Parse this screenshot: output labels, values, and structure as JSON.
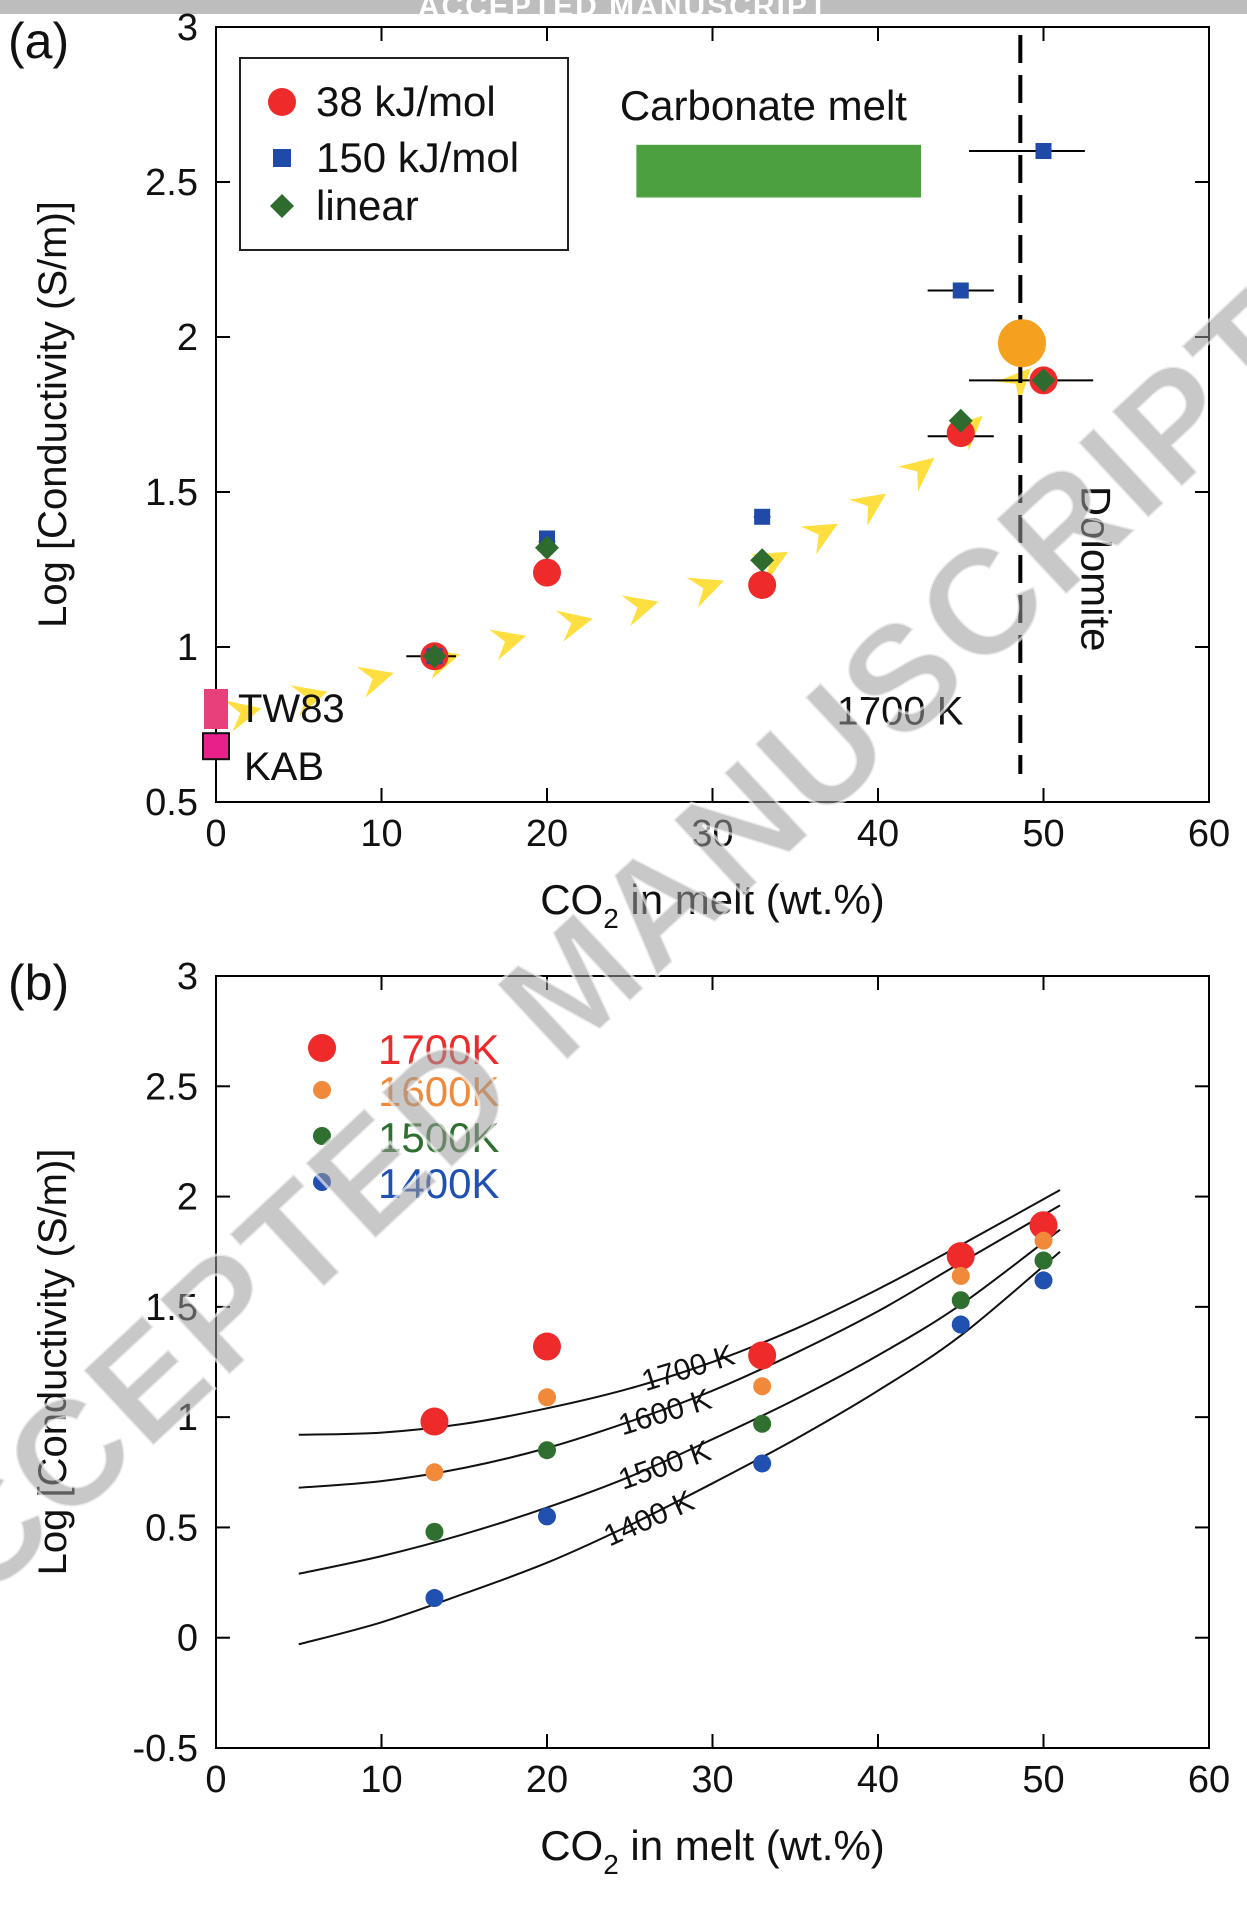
{
  "banner": "ACCEPTED MANUSCRIPT",
  "watermark": "ACCEPTED MANUSCRIPT",
  "colors": {
    "red": "#ee2a2a",
    "blue": "#1f4aa8",
    "green": "#2f6b2f",
    "orange": "#f6a020",
    "bar_green": "#4da040",
    "yellow": "#ffdf40",
    "pink": "#e8407a",
    "magenta": "#e8208a",
    "series_1600": "#f08a3a",
    "series_1500": "#2f6f2f",
    "series_1400": "#2050b0"
  },
  "chart_data": [
    {
      "type": "scatter",
      "panel_label": "(a)",
      "title": "",
      "xlabel": "CO₂ in melt (wt.%)",
      "xlabel_main": "CO",
      "xlabel_sub": "2",
      "xlabel_rest": " in melt (wt.%)",
      "ylabel": "Log [Conductivity (S/m)]",
      "xlim": [
        0,
        60
      ],
      "ylim": [
        0.5,
        3
      ],
      "xticks": [
        0,
        10,
        20,
        30,
        40,
        50,
        60
      ],
      "yticks": [
        0.5,
        1,
        1.5,
        2,
        2.5,
        3
      ],
      "xtick_labels": [
        "0",
        "10",
        "20",
        "30",
        "40",
        "50",
        "60"
      ],
      "ytick_labels": [
        "0.5",
        "1",
        "1.5",
        "2",
        "2.5",
        "3"
      ],
      "legend": {
        "position": "top-left",
        "entries": [
          {
            "label": "38 kJ/mol",
            "marker": "circle",
            "color": "#ee2a2a"
          },
          {
            "label": "150 kJ/mol",
            "marker": "square",
            "color": "#1f4aa8"
          },
          {
            "label": "linear",
            "marker": "diamond",
            "color": "#2f6b2f"
          }
        ]
      },
      "series": [
        {
          "marker": "circle",
          "color": "#ee2a2a",
          "points": [
            [
              13.2,
              0.97
            ],
            [
              20,
              1.24
            ],
            [
              33,
              1.2
            ],
            [
              45,
              1.69
            ],
            [
              50,
              1.86
            ]
          ]
        },
        {
          "marker": "square",
          "color": "#1f4aa8",
          "points": [
            [
              13.2,
              0.97
            ],
            [
              20,
              1.35
            ],
            [
              33,
              1.42
            ],
            [
              45,
              2.15
            ],
            [
              50,
              2.6
            ]
          ]
        },
        {
          "marker": "diamond",
          "color": "#2f6b2f",
          "points": [
            [
              13.2,
              0.97
            ],
            [
              20,
              1.32
            ],
            [
              33,
              1.28
            ],
            [
              45,
              1.73
            ],
            [
              50,
              1.86
            ]
          ]
        }
      ],
      "xerror_bars": [
        {
          "x": 13.2,
          "y": 0.97,
          "xmin": 11.5,
          "xmax": 14.5
        },
        {
          "x": 20,
          "y": 1.34,
          "xmin": 19.5,
          "xmax": 20.5
        },
        {
          "x": 20,
          "y": 1.23,
          "xmin": 19.5,
          "xmax": 20.5
        },
        {
          "x": 33,
          "y": 1.42,
          "xmin": 32.5,
          "xmax": 33.5
        },
        {
          "x": 33,
          "y": 1.2,
          "xmin": 32.5,
          "xmax": 33.5
        },
        {
          "x": 45,
          "y": 2.15,
          "xmin": 43,
          "xmax": 47
        },
        {
          "x": 45,
          "y": 1.68,
          "xmin": 43,
          "xmax": 47
        },
        {
          "x": 50,
          "y": 2.6,
          "xmin": 45.5,
          "xmax": 52.5
        },
        {
          "x": 50,
          "y": 1.86,
          "xmin": 45.5,
          "xmax": 53
        }
      ],
      "dolomite": {
        "x": 48.6,
        "label": "Dolomite",
        "point_y": 1.98,
        "point_color": "#f6a020"
      },
      "carbonate_melt": {
        "label": "Carbonate melt",
        "x_range": [
          25.4,
          42.6
        ],
        "y_range": [
          2.45,
          2.62
        ]
      },
      "annotation_temperature": {
        "text": "1700 K",
        "x": 37.5,
        "y": 0.73
      },
      "reference_points": [
        {
          "label": "TW83",
          "x": 0,
          "y": 0.8,
          "color": "#e8407a"
        },
        {
          "label": "KAB",
          "x": 0,
          "y": 0.68,
          "color": "#e8208a"
        }
      ],
      "arrow_path": {
        "color": "#ffdf40",
        "points": [
          [
            1,
            0.78
          ],
          [
            5,
            0.83
          ],
          [
            9,
            0.89
          ],
          [
            13,
            0.95
          ],
          [
            17,
            1.01
          ],
          [
            21,
            1.07
          ],
          [
            25,
            1.12
          ],
          [
            29,
            1.18
          ],
          [
            33,
            1.26
          ],
          [
            36,
            1.35
          ],
          [
            39,
            1.44
          ],
          [
            42,
            1.55
          ],
          [
            45,
            1.68
          ],
          [
            48,
            1.83
          ],
          [
            51,
            2.0
          ]
        ]
      }
    },
    {
      "type": "scatter",
      "panel_label": "(b)",
      "title": "",
      "xlabel": "CO₂ in melt (wt.%)",
      "xlabel_main": "CO",
      "xlabel_sub": "2",
      "xlabel_rest": " in melt (wt.%)",
      "ylabel": "Log [Conductivity (S/m)]",
      "xlim": [
        0,
        60
      ],
      "ylim": [
        -0.5,
        3
      ],
      "xticks": [
        0,
        10,
        20,
        30,
        40,
        50,
        60
      ],
      "yticks": [
        -0.5,
        0,
        0.5,
        1,
        1.5,
        2,
        2.5,
        3
      ],
      "xtick_labels": [
        "0",
        "10",
        "20",
        "30",
        "40",
        "50",
        "60"
      ],
      "ytick_labels": [
        "-0.5",
        "0",
        "0.5",
        "1",
        "1.5",
        "2",
        "2.5",
        "3"
      ],
      "legend": {
        "position": "top-left"
      },
      "series": [
        {
          "name": "1700K",
          "color": "#ee2a2a",
          "size": "large",
          "x": [
            13.2,
            20,
            33,
            45,
            50
          ],
          "y": [
            0.98,
            1.32,
            1.28,
            1.73,
            1.87
          ]
        },
        {
          "name": "1600K",
          "color": "#f08a3a",
          "size": "small",
          "x": [
            13.2,
            20,
            33,
            45,
            50
          ],
          "y": [
            0.75,
            1.09,
            1.14,
            1.64,
            1.8
          ]
        },
        {
          "name": "1500K",
          "color": "#2f6f2f",
          "size": "small",
          "x": [
            13.2,
            20,
            33,
            45,
            50
          ],
          "y": [
            0.48,
            0.85,
            0.97,
            1.53,
            1.71
          ]
        },
        {
          "name": "1400K",
          "color": "#2050b0",
          "size": "small",
          "x": [
            13.2,
            20,
            33,
            45,
            50
          ],
          "y": [
            0.18,
            0.55,
            0.79,
            1.42,
            1.62
          ]
        }
      ],
      "fit_curves": [
        {
          "label": "1700 K",
          "x": [
            5,
            10,
            15,
            20,
            25,
            30,
            35,
            40,
            45,
            51
          ],
          "y": [
            0.92,
            0.93,
            0.97,
            1.04,
            1.13,
            1.25,
            1.4,
            1.58,
            1.78,
            2.03
          ]
        },
        {
          "label": "1600 K",
          "x": [
            5,
            10,
            15,
            20,
            25,
            30,
            35,
            40,
            45,
            51
          ],
          "y": [
            0.68,
            0.71,
            0.77,
            0.86,
            0.98,
            1.12,
            1.29,
            1.48,
            1.7,
            1.96
          ]
        },
        {
          "label": "1500 K",
          "x": [
            5,
            10,
            15,
            20,
            25,
            30,
            35,
            40,
            45,
            51
          ],
          "y": [
            0.29,
            0.37,
            0.47,
            0.59,
            0.73,
            0.9,
            1.08,
            1.28,
            1.51,
            1.85
          ]
        },
        {
          "label": "1400 K",
          "x": [
            5,
            10,
            15,
            20,
            25,
            30,
            35,
            40,
            45,
            51
          ],
          "y": [
            -0.03,
            0.07,
            0.2,
            0.34,
            0.51,
            0.7,
            0.9,
            1.12,
            1.37,
            1.75
          ]
        }
      ],
      "curve_labels": [
        {
          "text": "1700 K",
          "x": 28.7,
          "y": 1.18,
          "angle": -17
        },
        {
          "text": "1600 K",
          "x": 27.3,
          "y": 0.98,
          "angle": -17
        },
        {
          "text": "1500 K",
          "x": 27.3,
          "y": 0.74,
          "angle": -19
        },
        {
          "text": "1400 K",
          "x": 26.4,
          "y": 0.5,
          "angle": -24
        }
      ]
    }
  ]
}
